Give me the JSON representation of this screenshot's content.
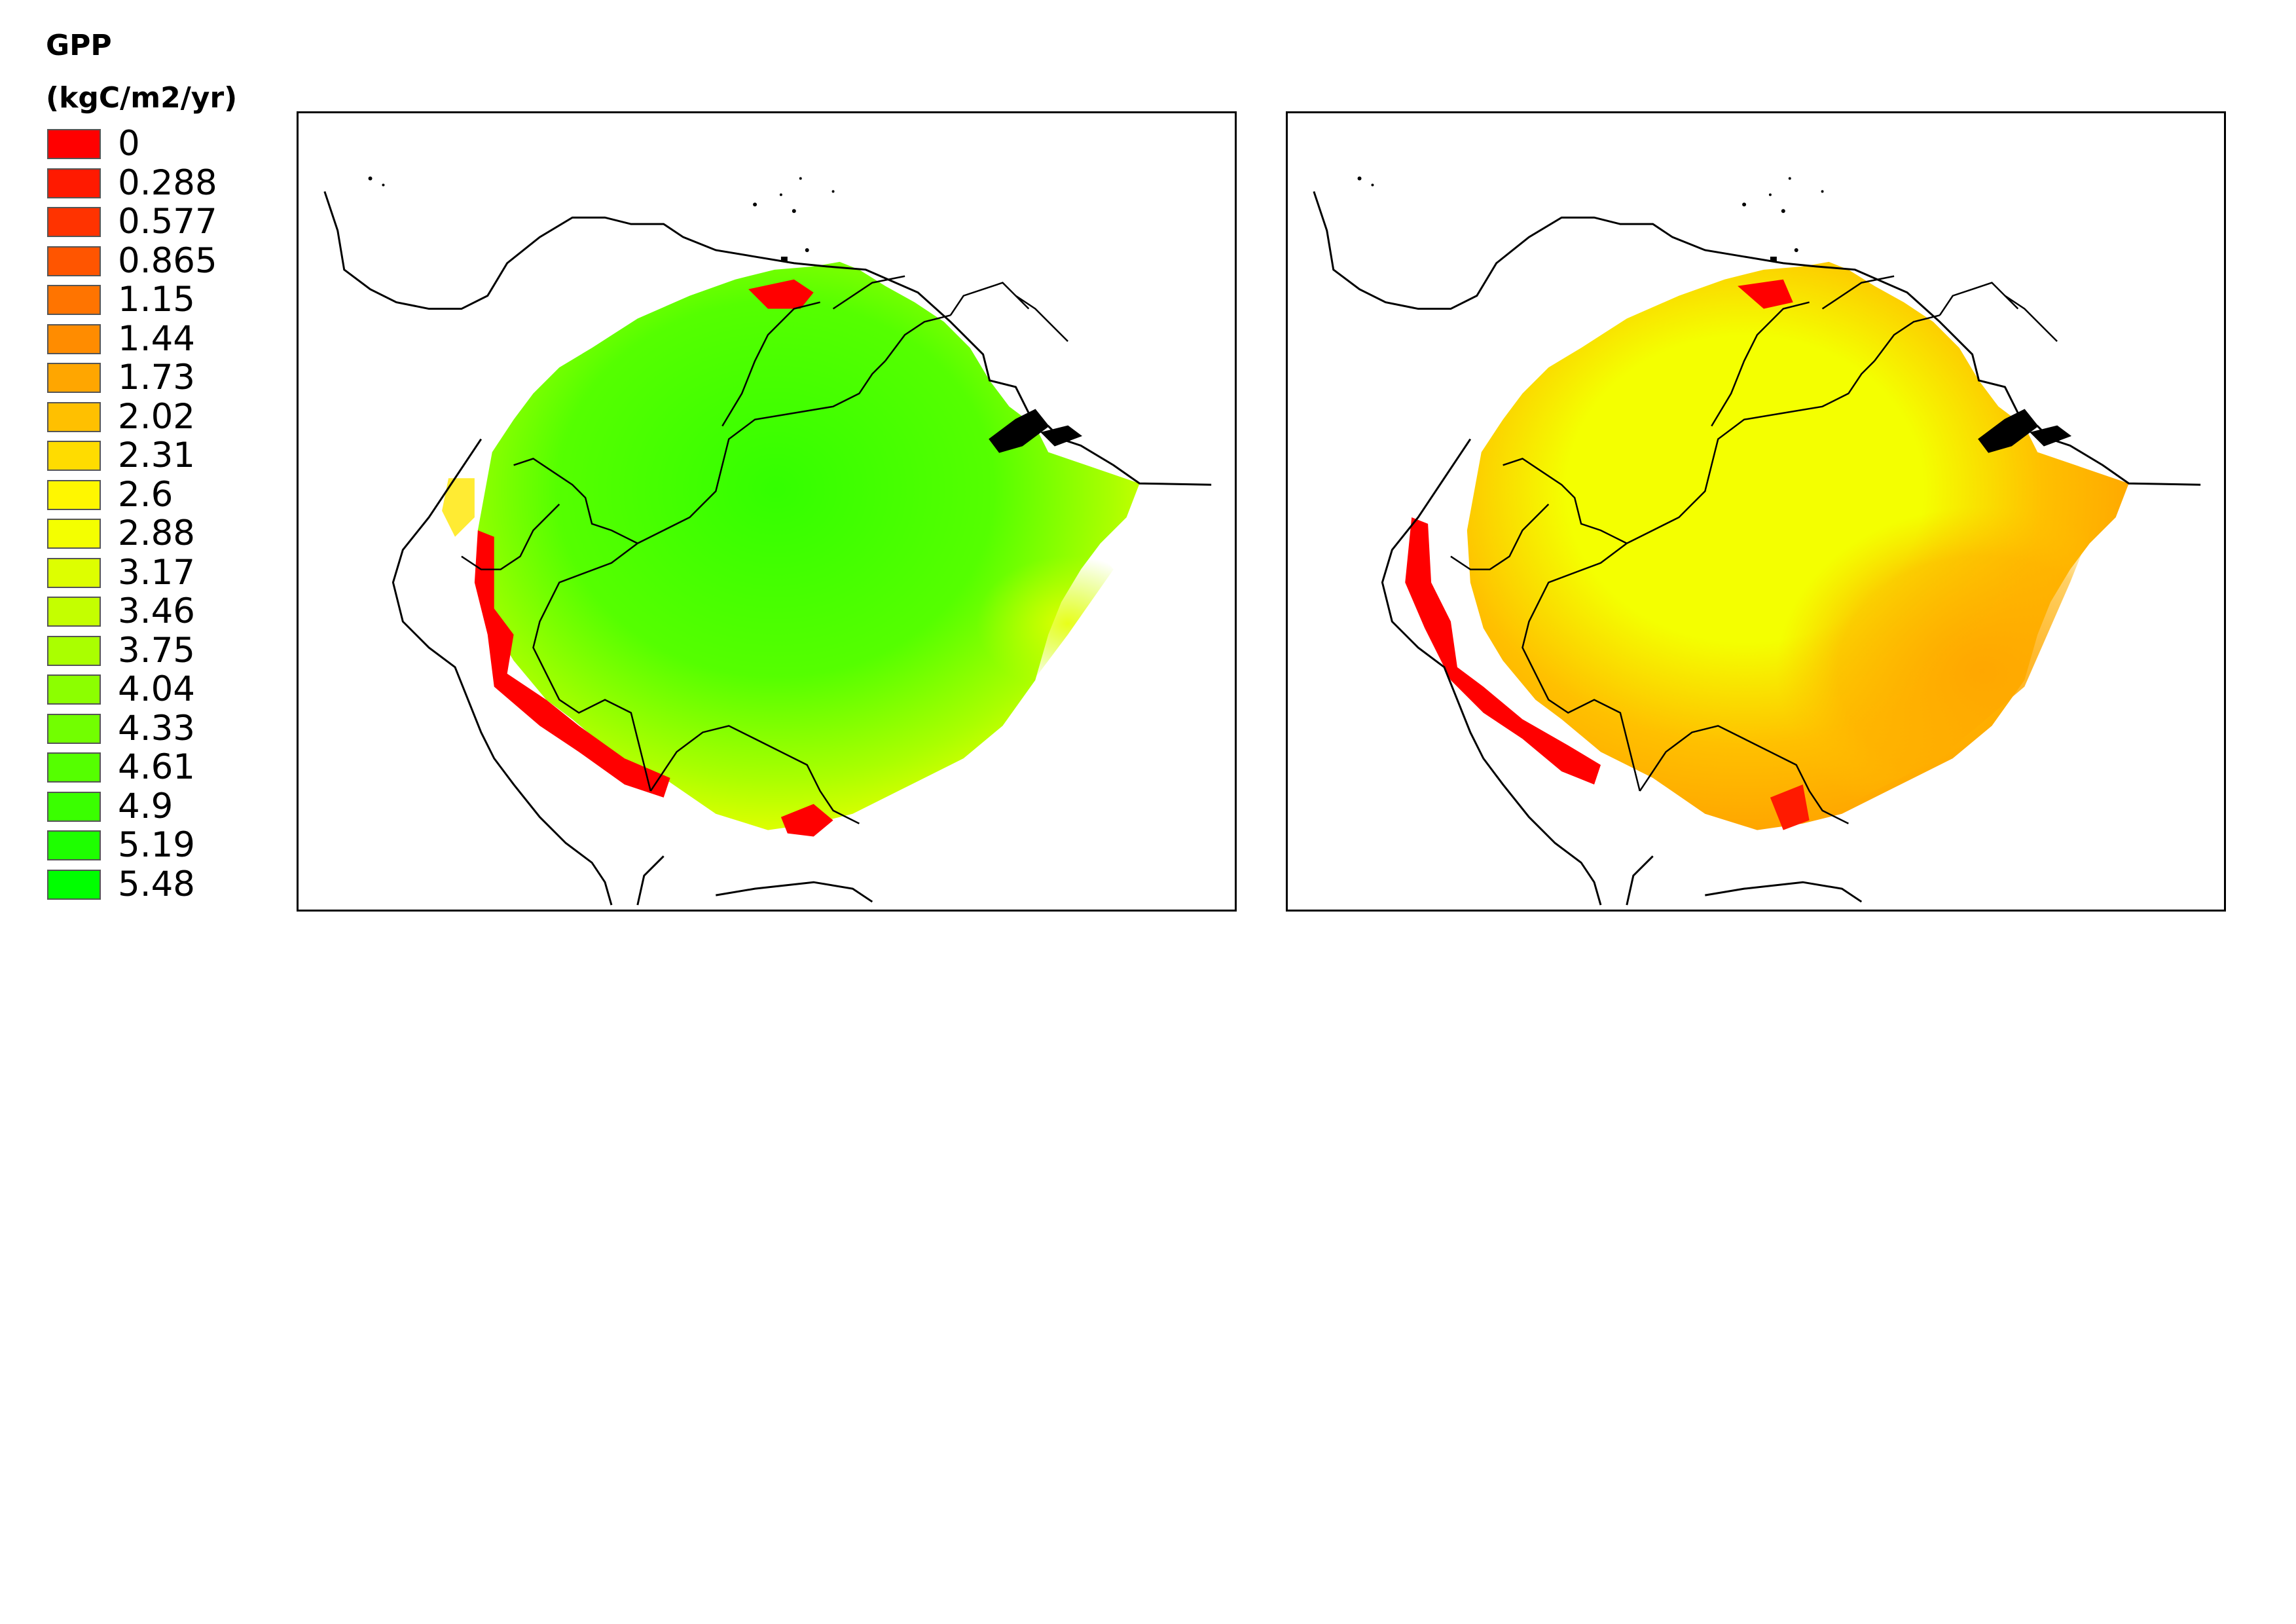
{
  "legend": {
    "title_line1": "GPP",
    "title_line2": "(kgC/m2/yr)",
    "items": [
      {
        "label": "0",
        "color": "#ff0000"
      },
      {
        "label": "0.288",
        "color": "#ff1a00"
      },
      {
        "label": "0.577",
        "color": "#ff3300"
      },
      {
        "label": "0.865",
        "color": "#ff5500"
      },
      {
        "label": "1.15",
        "color": "#ff7400"
      },
      {
        "label": "1.44",
        "color": "#ff8c00"
      },
      {
        "label": "1.73",
        "color": "#ffa600"
      },
      {
        "label": "2.02",
        "color": "#ffc000"
      },
      {
        "label": "2.31",
        "color": "#ffdc00"
      },
      {
        "label": "2.6",
        "color": "#fff700"
      },
      {
        "label": "2.88",
        "color": "#f4ff00"
      },
      {
        "label": "3.17",
        "color": "#ddff00"
      },
      {
        "label": "3.46",
        "color": "#c4ff00"
      },
      {
        "label": "3.75",
        "color": "#aaff00"
      },
      {
        "label": "4.04",
        "color": "#8cff00"
      },
      {
        "label": "4.33",
        "color": "#72ff00"
      },
      {
        "label": "4.61",
        "color": "#55ff00"
      },
      {
        "label": "4.9",
        "color": "#3aff00"
      },
      {
        "label": "5.19",
        "color": "#1eff00"
      },
      {
        "label": "5.48",
        "color": "#00ff00"
      }
    ]
  },
  "maps": [
    {
      "name": "left-map",
      "gpp_min": 0,
      "gpp_max": 5.48,
      "dominant_range": "green (approx. 4–5.5)"
    },
    {
      "name": "right-map",
      "gpp_min": 0,
      "gpp_max": 3.46,
      "dominant_range": "yellow/orange (approx. 1.5–3)"
    }
  ]
}
